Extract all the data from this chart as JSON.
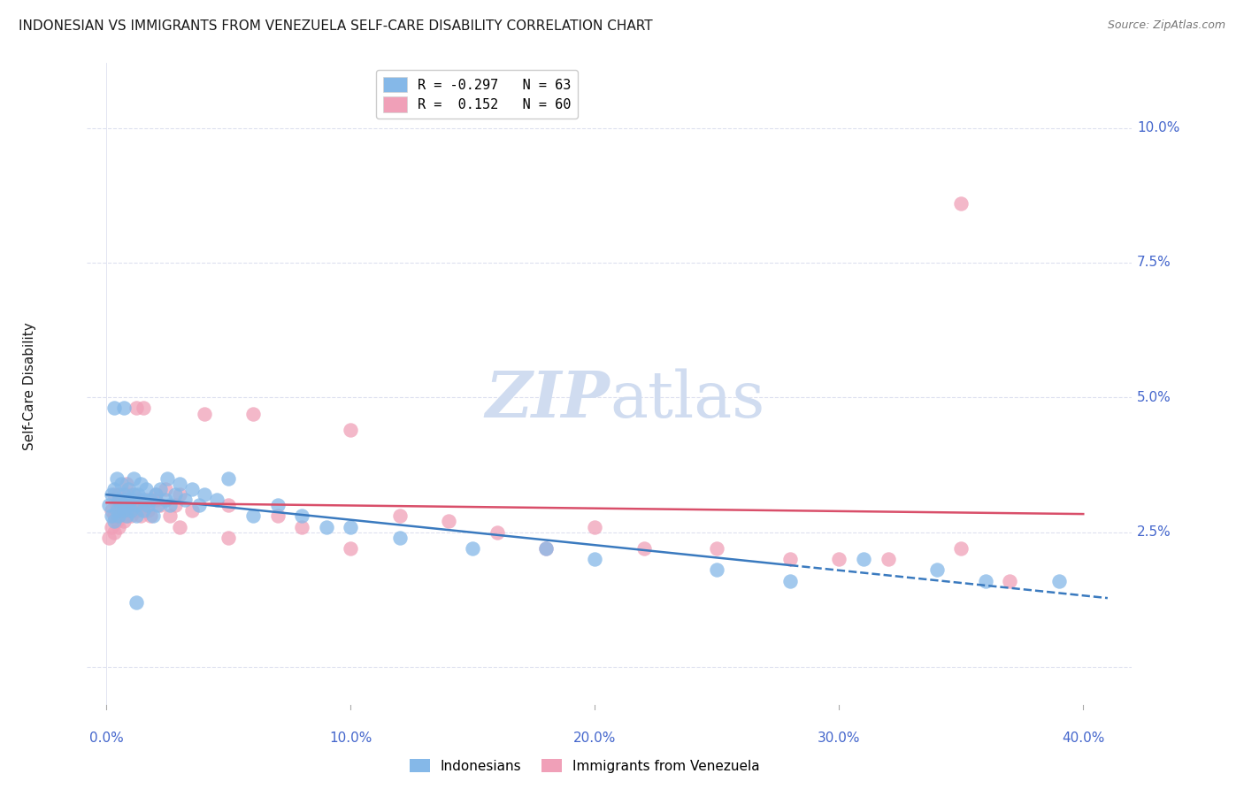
{
  "title": "INDONESIAN VS IMMIGRANTS FROM VENEZUELA SELF-CARE DISABILITY CORRELATION CHART",
  "source": "Source: ZipAtlas.com",
  "ylabel": "Self-Care Disability",
  "indonesian_color": "#85b8e8",
  "venezuela_color": "#f0a0b8",
  "trend_indonesian_color": "#3a7abf",
  "trend_venezuela_color": "#d94f6a",
  "watermark_color": "#d0dcf0",
  "title_color": "#1a1a1a",
  "source_color": "#777777",
  "tick_color": "#4466cc",
  "grid_color": "#dde0ef",
  "background_color": "#ffffff",
  "xlim": [
    -0.008,
    0.42
  ],
  "ylim": [
    -0.008,
    0.112
  ],
  "x_ticks": [
    0.0,
    0.1,
    0.2,
    0.3,
    0.4
  ],
  "x_tick_labels": [
    "0.0%",
    "10.0%",
    "20.0%",
    "30.0%",
    "40.0%"
  ],
  "y_ticks_right": [
    0.025,
    0.05,
    0.075,
    0.1
  ],
  "y_tick_labels_right": [
    "2.5%",
    "5.0%",
    "7.5%",
    "10.0%"
  ],
  "indonesian_R": -0.297,
  "indonesian_N": 63,
  "venezuela_R": 0.152,
  "venezuela_N": 60,
  "indonesian_x": [
    0.001,
    0.002,
    0.002,
    0.003,
    0.003,
    0.004,
    0.004,
    0.005,
    0.005,
    0.006,
    0.006,
    0.007,
    0.007,
    0.008,
    0.008,
    0.009,
    0.009,
    0.01,
    0.01,
    0.011,
    0.011,
    0.012,
    0.012,
    0.013,
    0.014,
    0.015,
    0.015,
    0.016,
    0.017,
    0.018,
    0.019,
    0.02,
    0.021,
    0.022,
    0.024,
    0.025,
    0.026,
    0.028,
    0.03,
    0.032,
    0.035,
    0.038,
    0.04,
    0.045,
    0.05,
    0.06,
    0.07,
    0.08,
    0.09,
    0.1,
    0.12,
    0.15,
    0.18,
    0.2,
    0.25,
    0.28,
    0.31,
    0.34,
    0.36,
    0.39,
    0.003,
    0.007,
    0.012
  ],
  "indonesian_y": [
    0.03,
    0.028,
    0.032,
    0.027,
    0.033,
    0.029,
    0.035,
    0.028,
    0.031,
    0.03,
    0.034,
    0.029,
    0.032,
    0.031,
    0.028,
    0.033,
    0.03,
    0.031,
    0.029,
    0.032,
    0.035,
    0.03,
    0.028,
    0.032,
    0.034,
    0.031,
    0.029,
    0.033,
    0.03,
    0.031,
    0.028,
    0.032,
    0.03,
    0.033,
    0.031,
    0.035,
    0.03,
    0.032,
    0.034,
    0.031,
    0.033,
    0.03,
    0.032,
    0.031,
    0.035,
    0.028,
    0.03,
    0.028,
    0.026,
    0.026,
    0.024,
    0.022,
    0.022,
    0.02,
    0.018,
    0.016,
    0.02,
    0.018,
    0.016,
    0.016,
    0.048,
    0.048,
    0.012
  ],
  "venezuela_x": [
    0.001,
    0.002,
    0.002,
    0.003,
    0.003,
    0.004,
    0.004,
    0.005,
    0.006,
    0.006,
    0.007,
    0.007,
    0.008,
    0.008,
    0.009,
    0.01,
    0.01,
    0.011,
    0.012,
    0.013,
    0.014,
    0.015,
    0.016,
    0.017,
    0.018,
    0.02,
    0.022,
    0.024,
    0.026,
    0.028,
    0.03,
    0.035,
    0.04,
    0.05,
    0.06,
    0.07,
    0.08,
    0.1,
    0.12,
    0.14,
    0.16,
    0.18,
    0.2,
    0.22,
    0.25,
    0.28,
    0.3,
    0.32,
    0.35,
    0.37,
    0.003,
    0.005,
    0.008,
    0.012,
    0.015,
    0.02,
    0.03,
    0.05,
    0.1,
    0.35
  ],
  "venezuela_y": [
    0.024,
    0.026,
    0.029,
    0.025,
    0.028,
    0.027,
    0.03,
    0.026,
    0.029,
    0.031,
    0.027,
    0.03,
    0.028,
    0.032,
    0.029,
    0.03,
    0.028,
    0.032,
    0.029,
    0.031,
    0.028,
    0.03,
    0.031,
    0.029,
    0.028,
    0.031,
    0.03,
    0.033,
    0.028,
    0.03,
    0.032,
    0.029,
    0.047,
    0.03,
    0.047,
    0.028,
    0.026,
    0.044,
    0.028,
    0.027,
    0.025,
    0.022,
    0.026,
    0.022,
    0.022,
    0.02,
    0.02,
    0.02,
    0.022,
    0.016,
    0.032,
    0.032,
    0.034,
    0.048,
    0.048,
    0.032,
    0.026,
    0.024,
    0.022,
    0.086
  ]
}
